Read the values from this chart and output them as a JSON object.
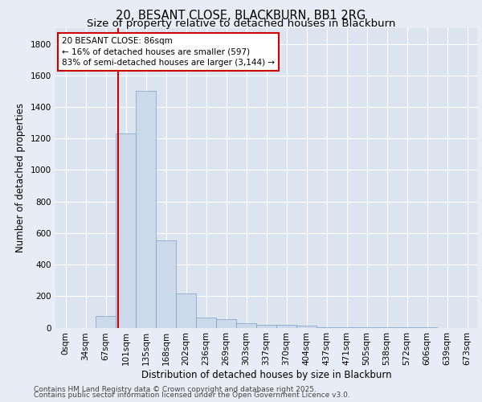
{
  "title_line1": "20, BESANT CLOSE, BLACKBURN, BB1 2RG",
  "title_line2": "Size of property relative to detached houses in Blackburn",
  "xlabel": "Distribution of detached houses by size in Blackburn",
  "ylabel": "Number of detached properties",
  "footnote1": "Contains HM Land Registry data © Crown copyright and database right 2025.",
  "footnote2": "Contains public sector information licensed under the Open Government Licence v3.0.",
  "annotation_line1": "20 BESANT CLOSE: 86sqm",
  "annotation_line2": "← 16% of detached houses are smaller (597)",
  "annotation_line3": "83% of semi-detached houses are larger (3,144) →",
  "bar_color": "#ccd9ea",
  "bar_edge_color": "#7aa0c4",
  "redline_color": "#cc0000",
  "annotation_box_edgecolor": "#cc0000",
  "annotation_box_facecolor": "#ffffff",
  "background_color": "#e8ecf5",
  "plot_bg_color": "#dce4f0",
  "grid_color": "#ffffff",
  "categories": [
    "0sqm",
    "34sqm",
    "67sqm",
    "101sqm",
    "135sqm",
    "168sqm",
    "202sqm",
    "236sqm",
    "269sqm",
    "303sqm",
    "337sqm",
    "370sqm",
    "404sqm",
    "437sqm",
    "471sqm",
    "505sqm",
    "538sqm",
    "572sqm",
    "606sqm",
    "639sqm",
    "673sqm"
  ],
  "values": [
    0,
    0,
    75,
    1230,
    1500,
    555,
    215,
    65,
    55,
    30,
    20,
    20,
    15,
    5,
    3,
    2,
    1,
    1,
    1,
    0,
    0
  ],
  "ylim": [
    0,
    1900
  ],
  "yticks": [
    0,
    200,
    400,
    600,
    800,
    1000,
    1200,
    1400,
    1600,
    1800
  ],
  "redline_x": 2.62,
  "title_fontsize": 10.5,
  "subtitle_fontsize": 9.5,
  "label_fontsize": 8.5,
  "tick_fontsize": 7.5,
  "annot_fontsize": 7.5,
  "footnote_fontsize": 6.5
}
